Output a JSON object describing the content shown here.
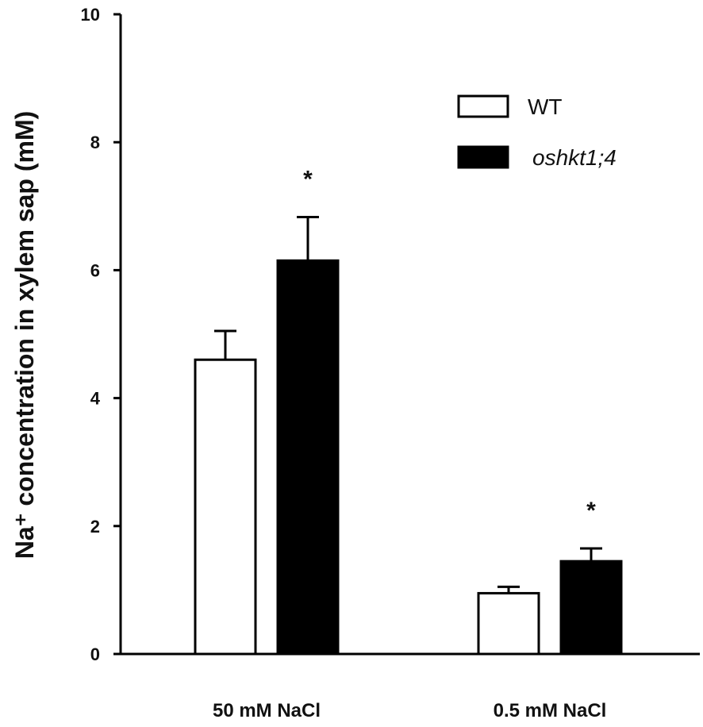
{
  "chart_data": {
    "type": "bar",
    "categories": [
      "50 mM NaCl",
      "0.5 mM NaCl"
    ],
    "series": [
      {
        "name": "WT",
        "values": [
          4.6,
          0.95
        ],
        "errors": [
          0.45,
          0.1
        ],
        "fill": "#ffffff"
      },
      {
        "name": "oshkt1;4",
        "values": [
          6.15,
          1.45
        ],
        "errors": [
          0.68,
          0.2
        ],
        "fill": "#000000"
      }
    ],
    "annotations": [
      {
        "category": 0,
        "series": 1,
        "text": "*"
      },
      {
        "category": 1,
        "series": 1,
        "text": "*"
      }
    ],
    "ylabel": "Na⁺ concentration in xylem sap (mM)",
    "xlabel": "",
    "ylim": [
      0,
      10
    ],
    "yticks": [
      0,
      2,
      4,
      6,
      8,
      10
    ],
    "ytick_labels": [
      "0",
      "2",
      "4",
      "6",
      "8",
      "10"
    ],
    "legend_placement": "top-right",
    "grid": false
  }
}
